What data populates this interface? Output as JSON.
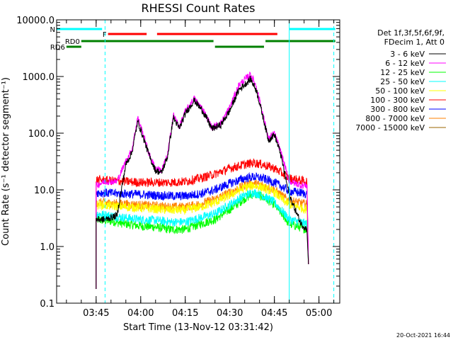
{
  "chart_data": {
    "type": "line",
    "title": "RHESSI Count Rates",
    "xlabel": "Start Time (13-Nov-12 03:31:42)",
    "ylabel": "Count Rate (s⁻¹ detector segment⁻¹)",
    "footer_date": "20-Oct-2021 16:44",
    "y_scale": "log",
    "xlim": [
      "03:31:42",
      "05:07:00"
    ],
    "ylim": [
      0.1,
      10000
    ],
    "x_ticks": [
      "03:45",
      "04:00",
      "04:15",
      "04:30",
      "04:45",
      "05:00"
    ],
    "y_ticks": [
      "0.1",
      "1.0",
      "10.0",
      "100.0",
      "1000.0",
      "10000.0"
    ],
    "legend_header": [
      "Det 1f,3f,5f,6f,9f,",
      "FDecim 1, Att 0"
    ],
    "legend_position": "right",
    "vertical_lines": [
      {
        "time": "03:31:42",
        "style": "solid",
        "color": "#00ffff"
      },
      {
        "time": "03:48:00",
        "style": "dashed",
        "color": "#00ffff"
      },
      {
        "time": "04:50:00",
        "style": "solid",
        "color": "#00ffff"
      },
      {
        "time": "05:05:00",
        "style": "dashed",
        "color": "#00ffff"
      }
    ],
    "flag_bars": [
      {
        "label": "N",
        "color": "#00ffff",
        "segments": [
          [
            "03:31:42",
            "03:47:00"
          ],
          [
            "04:50:00",
            "05:05:30"
          ]
        ]
      },
      {
        "label": "F",
        "color": "#ff0000",
        "segments": [
          [
            "03:49:00",
            "04:02:00"
          ],
          [
            "04:05:30",
            "04:46:00"
          ]
        ]
      },
      {
        "label": "RD0",
        "color": "#008000",
        "segments": [
          [
            "03:40:00",
            "04:24:30"
          ],
          [
            "04:42:00",
            "05:05:30"
          ]
        ]
      },
      {
        "label": "",
        "color": "#008000",
        "segments": [
          [
            "04:25:00",
            "04:41:30"
          ]
        ]
      },
      {
        "label": "RD6",
        "color": "#008000",
        "segments": [
          [
            "03:35:00",
            "03:40:00"
          ]
        ]
      }
    ],
    "series": [
      {
        "name": "3 - 6 keV",
        "color": "#000000",
        "x": [
          "03:45:00",
          "03:48:00",
          "03:52:00",
          "03:55:00",
          "03:57:00",
          "03:59:00",
          "04:01:00",
          "04:03:00",
          "04:05:00",
          "04:07:00",
          "04:09:00",
          "04:11:00",
          "04:13:00",
          "04:15:00",
          "04:18:00",
          "04:21:00",
          "04:24:00",
          "04:27:00",
          "04:30:00",
          "04:33:00",
          "04:35:00",
          "04:37:00",
          "04:39:00",
          "04:41:00",
          "04:43:00",
          "04:45:00",
          "04:47:00",
          "04:50:00",
          "04:54:00",
          "04:56:00"
        ],
        "y": [
          3.0,
          3.0,
          3.5,
          28,
          45,
          160,
          80,
          38,
          22,
          20,
          38,
          190,
          120,
          220,
          380,
          240,
          120,
          140,
          250,
          580,
          720,
          900,
          560,
          210,
          75,
          95,
          45,
          8.0,
          2.5,
          2.0
        ]
      },
      {
        "name": "6 - 12 keV",
        "color": "#ff00ff",
        "x": [
          "03:45:00",
          "03:48:00",
          "03:52:00",
          "03:55:00",
          "03:57:00",
          "03:59:00",
          "04:01:00",
          "04:03:00",
          "04:05:00",
          "04:07:00",
          "04:09:00",
          "04:11:00",
          "04:13:00",
          "04:15:00",
          "04:18:00",
          "04:21:00",
          "04:24:00",
          "04:27:00",
          "04:30:00",
          "04:33:00",
          "04:35:00",
          "04:37:00",
          "04:39:00",
          "04:41:00",
          "04:43:00",
          "04:45:00",
          "04:47:00",
          "04:50:00",
          "04:54:00",
          "04:56:00"
        ],
        "y": [
          12,
          14,
          14,
          32,
          50,
          190,
          90,
          40,
          24,
          22,
          40,
          210,
          130,
          240,
          410,
          260,
          125,
          150,
          290,
          700,
          880,
          1100,
          650,
          230,
          80,
          100,
          50,
          14,
          12,
          12
        ]
      },
      {
        "name": "12 - 25 keV",
        "color": "#00ff00",
        "x": [
          "03:45:00",
          "03:50:00",
          "03:55:00",
          "04:00:00",
          "04:05:00",
          "04:10:00",
          "04:15:00",
          "04:20:00",
          "04:25:00",
          "04:30:00",
          "04:35:00",
          "04:38:00",
          "04:41:00",
          "04:45:00",
          "04:48:00",
          "04:50:00",
          "04:56:00"
        ],
        "y": [
          3.0,
          2.8,
          2.5,
          2.3,
          2.2,
          2.0,
          2.0,
          2.5,
          3.0,
          4.5,
          7.0,
          8.5,
          7.5,
          5.5,
          3.5,
          2.5,
          2.0
        ]
      },
      {
        "name": "25 - 50 keV",
        "color": "#00ffff",
        "x": [
          "03:45:00",
          "03:50:00",
          "03:55:00",
          "04:00:00",
          "04:05:00",
          "04:10:00",
          "04:15:00",
          "04:20:00",
          "04:25:00",
          "04:30:00",
          "04:35:00",
          "04:38:00",
          "04:41:00",
          "04:45:00",
          "04:48:00",
          "04:50:00",
          "04:56:00"
        ],
        "y": [
          3.8,
          3.5,
          3.2,
          3.0,
          2.9,
          2.7,
          2.7,
          3.2,
          3.8,
          5.5,
          8.0,
          9.0,
          8.0,
          6.0,
          4.0,
          3.0,
          2.5
        ]
      },
      {
        "name": "50 - 100 keV",
        "color": "#ffff00",
        "x": [
          "03:45:00",
          "03:50:00",
          "03:55:00",
          "04:00:00",
          "04:05:00",
          "04:10:00",
          "04:15:00",
          "04:20:00",
          "04:25:00",
          "04:30:00",
          "04:35:00",
          "04:38:00",
          "04:41:00",
          "04:45:00",
          "04:48:00",
          "04:50:00",
          "04:56:00"
        ],
        "y": [
          5.5,
          5.2,
          5.0,
          4.8,
          4.6,
          4.4,
          4.4,
          5.0,
          6.0,
          8.0,
          11,
          12,
          11,
          9.0,
          6.5,
          5.5,
          4.5
        ]
      },
      {
        "name": "100 - 300 keV",
        "color": "#ff0000",
        "x": [
          "03:45:00",
          "03:50:00",
          "03:55:00",
          "04:00:00",
          "04:05:00",
          "04:10:00",
          "04:15:00",
          "04:20:00",
          "04:25:00",
          "04:30:00",
          "04:35:00",
          "04:38:00",
          "04:41:00",
          "04:45:00",
          "04:48:00",
          "04:50:00",
          "04:56:00"
        ],
        "y": [
          15,
          14.5,
          14,
          13.5,
          13.5,
          13.5,
          14,
          16,
          19,
          24,
          28,
          30,
          28,
          24,
          19,
          16,
          14
        ]
      },
      {
        "name": "300 - 800 keV",
        "color": "#0000ff",
        "x": [
          "03:45:00",
          "03:50:00",
          "03:55:00",
          "04:00:00",
          "04:05:00",
          "04:10:00",
          "04:15:00",
          "04:20:00",
          "04:25:00",
          "04:30:00",
          "04:35:00",
          "04:38:00",
          "04:41:00",
          "04:45:00",
          "04:48:00",
          "04:50:00",
          "04:56:00"
        ],
        "y": [
          9.0,
          8.7,
          8.5,
          8.3,
          8.0,
          7.8,
          7.8,
          8.5,
          10,
          13,
          16,
          17,
          16,
          13.5,
          11,
          9.5,
          8.5
        ]
      },
      {
        "name": "800 - 7000 keV",
        "color": "#ff8000",
        "x": [
          "03:45:00",
          "03:50:00",
          "03:55:00",
          "04:00:00",
          "04:05:00",
          "04:10:00",
          "04:15:00",
          "04:20:00",
          "04:25:00",
          "04:30:00",
          "04:35:00",
          "04:38:00",
          "04:41:00",
          "04:45:00",
          "04:48:00",
          "04:50:00",
          "04:56:00"
        ],
        "y": [
          6.0,
          5.8,
          5.6,
          5.4,
          5.2,
          5.0,
          5.0,
          5.6,
          6.8,
          9.0,
          12,
          13,
          12,
          10,
          7.5,
          6.5,
          5.5
        ]
      },
      {
        "name": "7000 - 15000 keV",
        "color": "#996600",
        "x": [],
        "y": []
      }
    ]
  }
}
